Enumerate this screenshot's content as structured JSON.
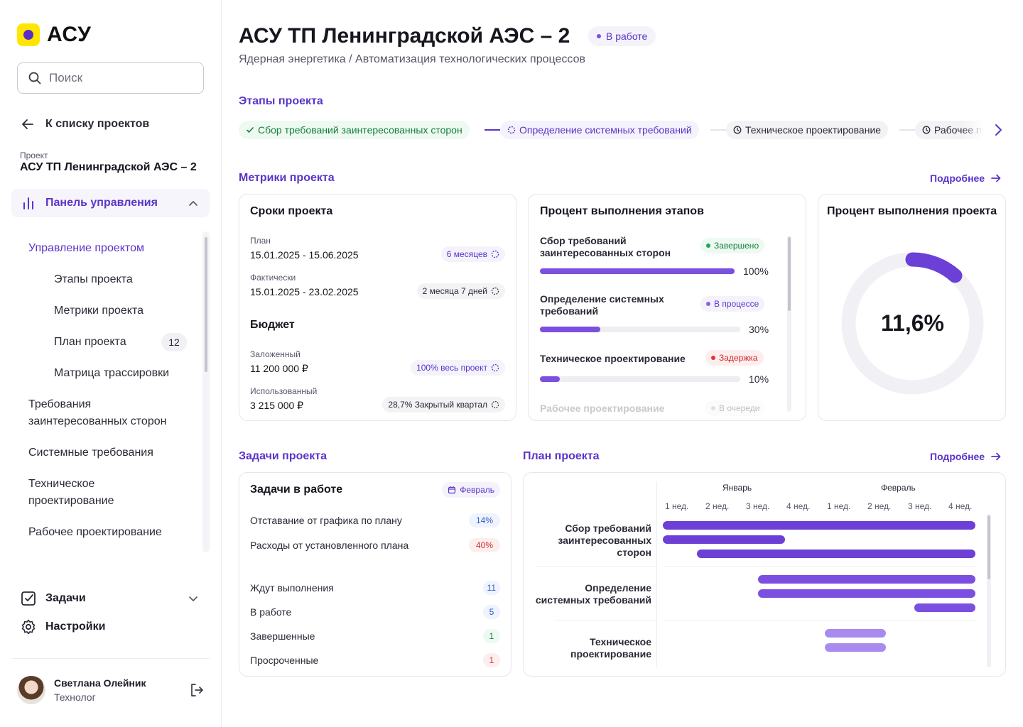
{
  "app": {
    "logo_text": "АСУ"
  },
  "search": {
    "placeholder": "Поиск"
  },
  "sidebar": {
    "back_label": "К списку проектов",
    "project_caption": "Проект",
    "project_name": "АСУ ТП Ленинградской АЭС – 2",
    "dashboard_label": "Панель управления",
    "nav": {
      "manage": "Управление проектом",
      "stages": "Этапы проекта",
      "metrics": "Метрики проекта",
      "plan": "План проекта",
      "plan_badge": "12",
      "matrix": "Матрица трассировки",
      "stakeholder_line1": "Требования",
      "stakeholder_line2": "заинтересованных сторон",
      "system": "Системные требования",
      "tech_line1": "Техническое",
      "tech_line2": "проектирование",
      "working": "Рабочее проектирование"
    },
    "tasks_label": "Задачи",
    "settings_label": "Настройки",
    "user": {
      "name": "Светлана Олейник",
      "role": "Технолог"
    }
  },
  "header": {
    "title": "АСУ ТП Ленинградской АЭС – 2",
    "status": "В работе",
    "subtitle": "Ядерная энергетика / Автоматизация технологических процессов"
  },
  "stages_section": {
    "title": "Этапы проекта",
    "items": [
      {
        "label": "Сбор требований заинтересованных сторон",
        "state": "done"
      },
      {
        "label": "Определение системных требований",
        "state": "proc"
      },
      {
        "label": "Техническое проектирование",
        "state": "wait"
      },
      {
        "label": "Рабочее проектирование",
        "state": "wait"
      }
    ]
  },
  "metrics": {
    "title": "Метрики проекта",
    "more": "Подробнее",
    "deadlines": {
      "title": "Сроки проекта",
      "plan_label": "План",
      "plan_value": "15.01.2025 - 15.06.2025",
      "plan_chip": "6 месяцев",
      "fact_label": "Фактически",
      "fact_value": "15.01.2025 - 23.02.2025",
      "fact_chip": "2 месяца 7 дней",
      "budget_title": "Бюджет",
      "planned_label": "Заложенный",
      "planned_value": "11 200 000 ₽",
      "planned_chip": "100% весь проект",
      "used_label": "Использованный",
      "used_value": "3 215 000 ₽",
      "used_chip": "28,7% Закрытый квартал"
    },
    "stage_progress": {
      "title": "Процент выполнения этапов",
      "rows": [
        {
          "line1": "Сбор требований",
          "line2": "заинтересованных сторон",
          "status": "Завершено",
          "percent": 100,
          "percent_label": "100%"
        },
        {
          "line1": "Определение системных",
          "line2": "требований",
          "status": "В процессе",
          "percent": 30,
          "percent_label": "30%"
        },
        {
          "line1": "Техническое проектирование",
          "line2": "",
          "status": "Задержка",
          "percent": 10,
          "percent_label": "10%"
        },
        {
          "line1": "Рабочее проектирование",
          "line2": "",
          "status": "В очереди",
          "percent": 0,
          "percent_label": ""
        }
      ]
    },
    "project_progress": {
      "title": "Процент выполнения проекта",
      "value_label": "11,6%",
      "value": 11.6
    }
  },
  "tasks": {
    "title": "Задачи проекта",
    "card_title": "Задачи в работе",
    "month_chip": "Февраль",
    "lag_label": "Отставание от графика по плану",
    "lag_value": "14%",
    "cost_label": "Расходы от установленного плана",
    "cost_value": "40%",
    "waiting_label": "Ждут выполнения",
    "waiting_count": "11",
    "in_work_label": "В работе",
    "in_work_count": "5",
    "done_label": "Завершенные",
    "done_count": "1",
    "overdue_label": "Просроченные",
    "overdue_count": "1"
  },
  "plan": {
    "title": "План проекта",
    "more": "Подробнее",
    "months": [
      "Январь",
      "Февраль"
    ],
    "weeks": [
      "1 нед.",
      "2 нед.",
      "3 нед.",
      "4 нед.",
      "1 нед.",
      "2 нед.",
      "3 нед.",
      "4 нед."
    ],
    "tasks": [
      {
        "line1": "Сбор требований",
        "line2": "заинтересованных",
        "line3": "сторон"
      },
      {
        "line1": "Определение",
        "line2": "системных требований",
        "line3": ""
      },
      {
        "line1": "Техническое",
        "line2": "проектирование",
        "line3": ""
      }
    ]
  },
  "colors": {
    "accent": "#5b34c9",
    "bar_primary": "#6c3fd6",
    "bar_light": "#a98bef",
    "logo_yellow": "#ffe600",
    "success": "#15803d",
    "danger": "#d12b2b"
  }
}
